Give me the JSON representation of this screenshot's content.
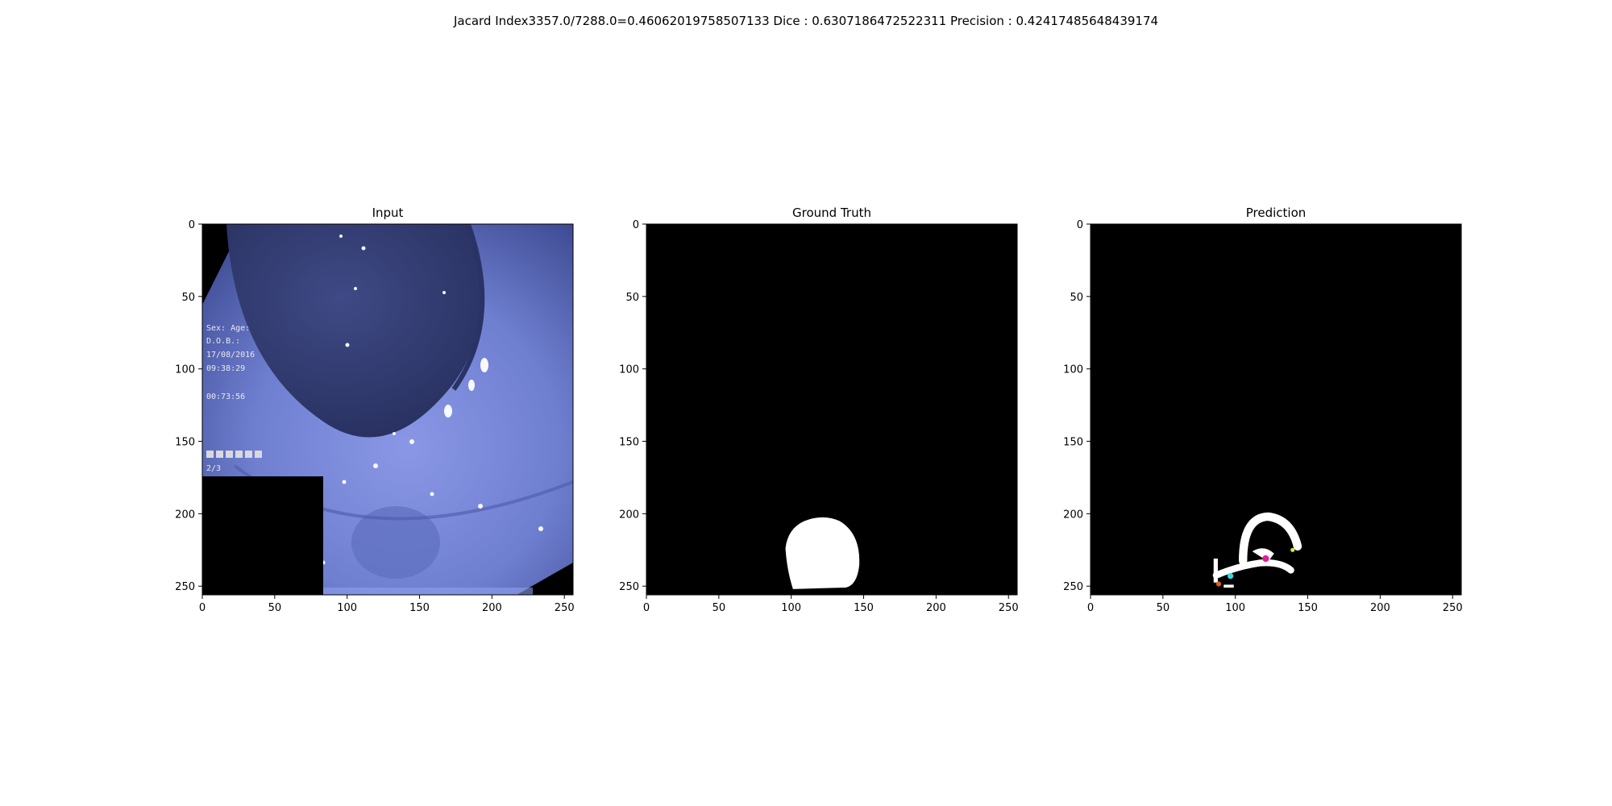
{
  "suptitle": "Jacard Index3357.0/7288.0=0.46062019758507133 Dice : 0.6307186472522311 Precision : 0.42417485648439174",
  "chart_data": [
    {
      "type": "image",
      "title": "Input",
      "xlim": [
        0,
        256
      ],
      "ylim": [
        256,
        0
      ],
      "xticks": [
        0,
        50,
        100,
        150,
        200,
        250
      ],
      "yticks": [
        0,
        50,
        100,
        150,
        200,
        250
      ],
      "content": "colonoscopy frame (blue-tinted mucosa) with black lower-left overlay box",
      "overlay_text": [
        "Sex:  Age:",
        "D.O.B.:",
        "17/08/2016",
        "09:38:29",
        "00:73:56",
        "2/3"
      ]
    },
    {
      "type": "image",
      "title": "Ground Truth",
      "xlim": [
        0,
        256
      ],
      "ylim": [
        256,
        0
      ],
      "xticks": [
        0,
        50,
        100,
        150,
        200,
        250
      ],
      "yticks": [
        0,
        50,
        100,
        150,
        200,
        250
      ],
      "content": "binary mask: white blob on black",
      "mask_regions": [
        {
          "shape": "blob",
          "x_range": [
            96,
            148
          ],
          "y_range": [
            201,
            252
          ]
        }
      ]
    },
    {
      "type": "image",
      "title": "Prediction",
      "xlim": [
        0,
        256
      ],
      "ylim": [
        256,
        0
      ],
      "xticks": [
        0,
        50,
        100,
        150,
        200,
        250
      ],
      "yticks": [
        0,
        50,
        100,
        150,
        200,
        250
      ],
      "content": "binary mask: white arc-shaped prediction on black",
      "mask_regions": [
        {
          "shape": "arc",
          "x_range": [
            85,
            143
          ],
          "y_range": [
            200,
            250
          ]
        }
      ]
    }
  ]
}
